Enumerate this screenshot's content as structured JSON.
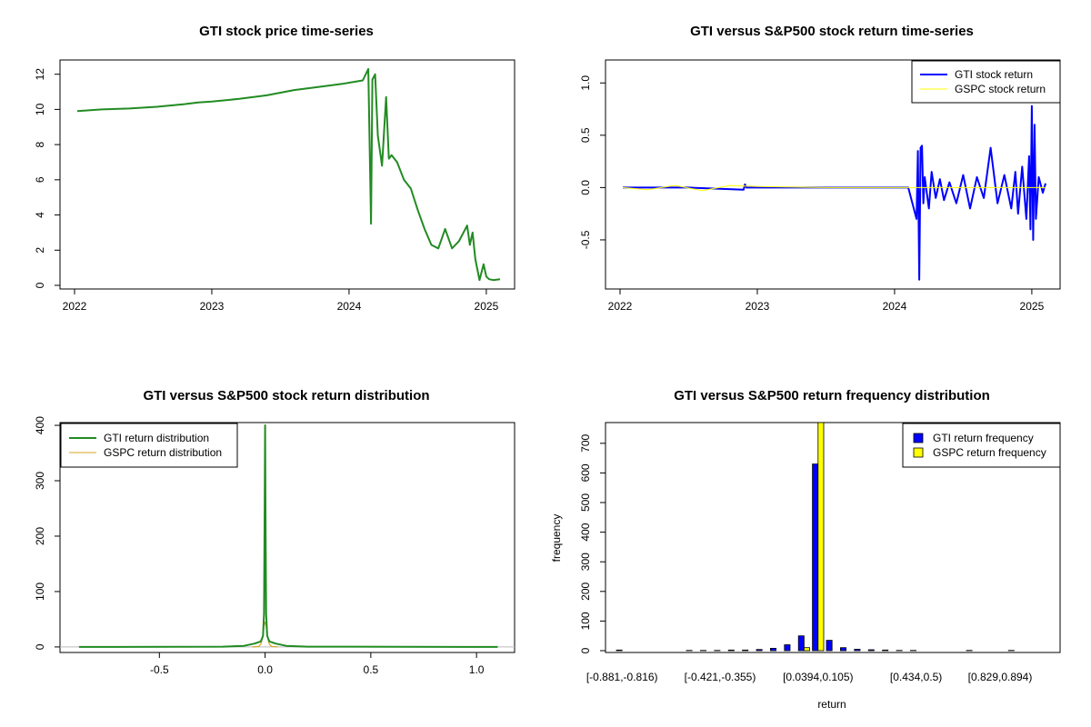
{
  "colors": {
    "gti_price": "#228B22",
    "gti_return": "#0000FF",
    "gspc_return": "#FFFF00",
    "gti_density": "#228B22",
    "gspc_density": "#DAA520",
    "gti_bar": "#0000FF",
    "gspc_bar": "#FFFF00"
  },
  "chart_data": [
    {
      "type": "line",
      "title": "GTI stock price time-series",
      "xlabel": "",
      "ylabel": "",
      "xlim": [
        2022.0,
        2025.1
      ],
      "ylim": [
        0,
        12.5
      ],
      "xticks": [
        2022,
        2023,
        2024,
        2025
      ],
      "yticks": [
        0,
        2,
        4,
        6,
        8,
        10,
        12
      ],
      "grid": false,
      "series": [
        {
          "x": [
            2022.02,
            2022.2,
            2022.4,
            2022.6,
            2022.8,
            2022.9,
            2023.0,
            2023.2,
            2023.4,
            2023.6,
            2023.8,
            2023.95,
            2024.1,
            2024.14,
            2024.16,
            2024.17,
            2024.19,
            2024.21,
            2024.24,
            2024.27,
            2024.29,
            2024.31,
            2024.35,
            2024.4,
            2024.45,
            2024.5,
            2024.55,
            2024.6,
            2024.65,
            2024.7,
            2024.75,
            2024.8,
            2024.86,
            2024.88,
            2024.9,
            2024.92,
            2024.95,
            2024.98,
            2025.0,
            2025.02,
            2025.05,
            2025.1
          ],
          "values": [
            9.9,
            10.0,
            10.05,
            10.15,
            10.3,
            10.4,
            10.45,
            10.6,
            10.8,
            11.1,
            11.3,
            11.45,
            11.65,
            12.3,
            3.5,
            11.7,
            12.0,
            8.5,
            6.8,
            10.7,
            7.2,
            7.4,
            7.0,
            6.0,
            5.5,
            4.3,
            3.2,
            2.3,
            2.1,
            3.2,
            2.1,
            2.5,
            3.4,
            2.3,
            3.0,
            1.5,
            0.3,
            1.2,
            0.5,
            0.35,
            0.3,
            0.35
          ]
        }
      ]
    },
    {
      "type": "line",
      "title": "GTI versus S&P500 stock return time-series",
      "xlabel": "",
      "ylabel": "",
      "xlim": [
        2022.0,
        2025.1
      ],
      "ylim": [
        -0.9,
        1.15
      ],
      "xticks": [
        2022,
        2023,
        2024,
        2025
      ],
      "yticks": [
        -0.5,
        0.0,
        0.5,
        1.0
      ],
      "legend_position": "top-right",
      "grid": false,
      "series": [
        {
          "name": "GTI stock return",
          "x": [
            2022.02,
            2022.5,
            2022.9,
            2022.91,
            2022.92,
            2023.5,
            2024.1,
            2024.16,
            2024.17,
            2024.18,
            2024.19,
            2024.2,
            2024.21,
            2024.22,
            2024.25,
            2024.27,
            2024.3,
            2024.33,
            2024.36,
            2024.4,
            2024.45,
            2024.5,
            2024.55,
            2024.6,
            2024.65,
            2024.7,
            2024.75,
            2024.8,
            2024.85,
            2024.88,
            2024.9,
            2024.93,
            2024.96,
            2024.98,
            2024.99,
            2025.0,
            2025.01,
            2025.02,
            2025.03,
            2025.05,
            2025.08,
            2025.1
          ],
          "values": [
            0.0,
            0.0,
            -0.02,
            0.03,
            0.0,
            0.0,
            0.0,
            -0.3,
            0.35,
            -0.88,
            0.38,
            0.4,
            -0.15,
            0.1,
            -0.2,
            0.15,
            -0.1,
            0.08,
            -0.12,
            0.05,
            -0.15,
            0.12,
            -0.2,
            0.1,
            -0.1,
            0.38,
            -0.15,
            0.12,
            -0.2,
            0.15,
            -0.25,
            0.2,
            -0.3,
            0.3,
            -0.4,
            0.78,
            -0.5,
            0.6,
            -0.3,
            0.1,
            -0.05,
            0.04
          ]
        },
        {
          "name": "GSPC stock return",
          "x": [
            2022.02,
            2022.2,
            2022.4,
            2022.6,
            2022.8,
            2023.0,
            2023.5,
            2024.0,
            2024.5,
            2025.0,
            2025.1
          ],
          "values": [
            0.0,
            -0.02,
            0.02,
            -0.03,
            0.02,
            0.01,
            0.0,
            0.0,
            0.0,
            0.0,
            0.0
          ]
        }
      ]
    },
    {
      "type": "line",
      "title": "GTI versus S&P500 stock return distribution",
      "xlabel": "",
      "ylabel": "",
      "xlim": [
        -0.97,
        1.18
      ],
      "ylim": [
        -10,
        405
      ],
      "xticks": [
        -0.5,
        0.0,
        0.5,
        1.0
      ],
      "yticks": [
        0,
        100,
        200,
        300,
        400
      ],
      "legend_position": "top-left",
      "grid": false,
      "series": [
        {
          "name": "GTI return distribution",
          "x": [
            -0.88,
            -0.2,
            -0.1,
            -0.05,
            -0.02,
            -0.01,
            -0.005,
            -0.002,
            0.0,
            0.002,
            0.005,
            0.01,
            0.02,
            0.05,
            0.1,
            0.2,
            1.1
          ],
          "values": [
            0,
            0.5,
            2,
            6,
            10,
            20,
            60,
            250,
            400,
            250,
            60,
            20,
            10,
            6,
            2,
            0.5,
            0
          ]
        },
        {
          "name": "GSPC return distribution",
          "x": [
            -0.06,
            -0.03,
            -0.02,
            -0.01,
            -0.005,
            0.0,
            0.005,
            0.01,
            0.02,
            0.03,
            0.06
          ],
          "values": [
            0,
            1,
            5,
            20,
            38,
            45,
            38,
            20,
            5,
            1,
            0
          ]
        }
      ]
    },
    {
      "type": "bar",
      "title": "GTI versus S&P500 return frequency distribution",
      "xlabel": "return",
      "ylabel": "frequency",
      "ylim": [
        0,
        770
      ],
      "yticks": [
        0,
        100,
        200,
        300,
        400,
        500,
        600,
        700
      ],
      "tick_labels": [
        {
          "index": 0,
          "label": "[-0.881,-0.816)"
        },
        {
          "index": 7,
          "label": "[-0.421,-0.355)"
        },
        {
          "index": 14,
          "label": "[0.0394,0.105)"
        },
        {
          "index": 21,
          "label": "[0.434,0.5)"
        },
        {
          "index": 27,
          "label": "[0.829,0.894)"
        }
      ],
      "legend_position": "top-right",
      "grid": false,
      "n_bins": 29,
      "series": [
        {
          "name": "GTI return frequency",
          "values": [
            2,
            0,
            0,
            0,
            0,
            1,
            1,
            1,
            2,
            2,
            4,
            8,
            20,
            50,
            630,
            35,
            10,
            5,
            3,
            2,
            1,
            1,
            0,
            0,
            0,
            1,
            0,
            0,
            1
          ]
        },
        {
          "name": "GSPC return frequency",
          "values": [
            0,
            0,
            0,
            0,
            0,
            0,
            0,
            0,
            0,
            0,
            0,
            0,
            0,
            10,
            775,
            0,
            0,
            0,
            0,
            0,
            0,
            0,
            0,
            0,
            0,
            0,
            0,
            0,
            0
          ]
        }
      ]
    }
  ]
}
